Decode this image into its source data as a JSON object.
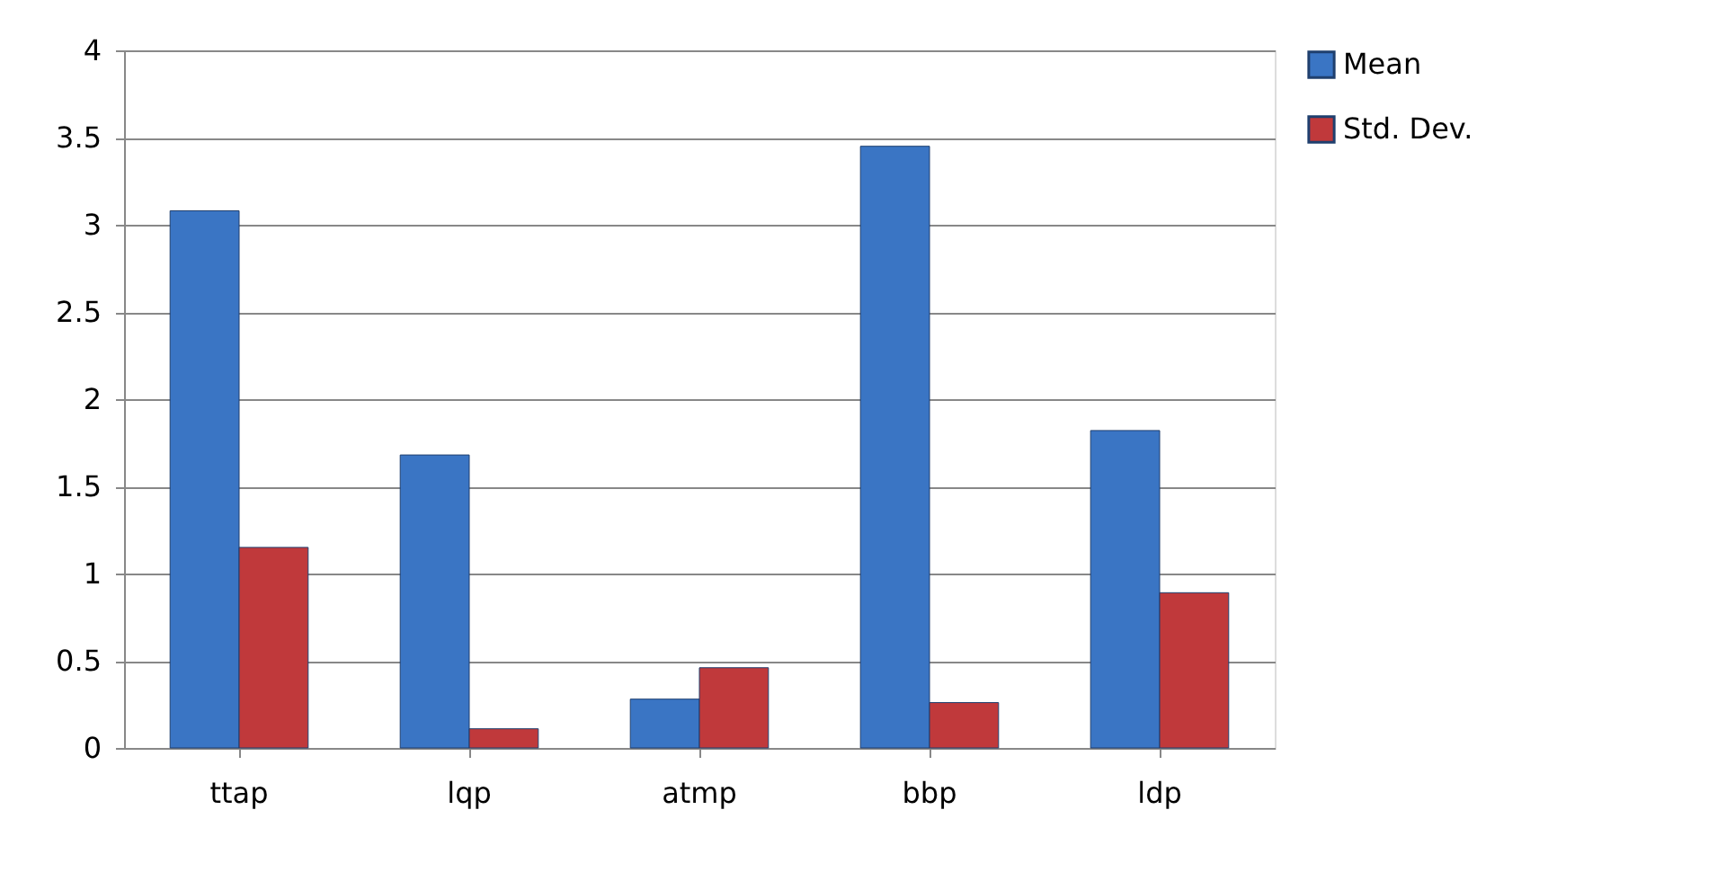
{
  "chart_data": {
    "type": "bar",
    "categories": [
      "ttap",
      "lqp",
      "atmp",
      "bbp",
      "ldp"
    ],
    "series": [
      {
        "name": "Mean",
        "color": "#3a75c4",
        "values": [
          3.08,
          1.68,
          0.28,
          3.45,
          1.82
        ]
      },
      {
        "name": "Std. Dev.",
        "color": "#c0393b",
        "values": [
          1.15,
          0.11,
          0.46,
          0.26,
          0.89
        ]
      }
    ],
    "ylim": [
      0,
      4
    ],
    "yticks": [
      0,
      0.5,
      1,
      1.5,
      2,
      2.5,
      3,
      3.5,
      4
    ],
    "grid": "y",
    "legend": "right"
  }
}
